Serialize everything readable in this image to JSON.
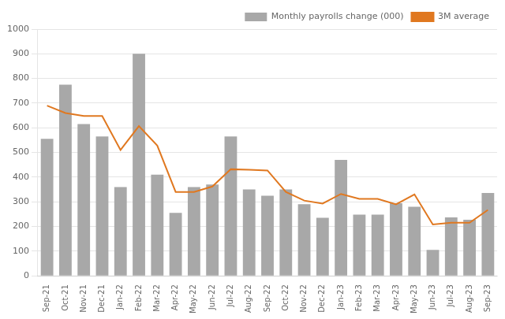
{
  "chart_data": {
    "type": "bar",
    "categories": [
      "Sep-21",
      "Oct-21",
      "Nov-21",
      "Dec-21",
      "Jan-22",
      "Feb-22",
      "Mar-22",
      "Apr-22",
      "May-22",
      "Jun-22",
      "Jul-22",
      "Aug-22",
      "Sep-22",
      "Oct-22",
      "Nov-22",
      "Dec-22",
      "Jan-23",
      "Feb-23",
      "Mar-23",
      "Apr-23",
      "May-23",
      "Jun-23",
      "Jul-23",
      "Aug-23",
      "Sep-23"
    ],
    "series": [
      {
        "name": "Monthly payrolls change (000)",
        "type": "bar",
        "color": "#a8a8a8",
        "values": [
          555,
          775,
          615,
          565,
          360,
          900,
          410,
          255,
          360,
          370,
          565,
          350,
          325,
          350,
          290,
          235,
          470,
          248,
          248,
          294,
          280,
          105,
          237,
          227,
          336
        ]
      },
      {
        "name": "3M average",
        "type": "line",
        "color": "#e07820",
        "values": [
          690,
          660,
          648,
          648,
          510,
          607,
          528,
          340,
          340,
          362,
          432,
          430,
          427,
          340,
          305,
          293,
          332,
          312,
          312,
          290,
          330,
          208,
          215,
          215,
          267
        ]
      }
    ],
    "ylim": [
      0,
      1000
    ],
    "yticks": [
      0,
      100,
      200,
      300,
      400,
      500,
      600,
      700,
      800,
      900,
      1000
    ],
    "grid": true,
    "legend": "upper right"
  }
}
